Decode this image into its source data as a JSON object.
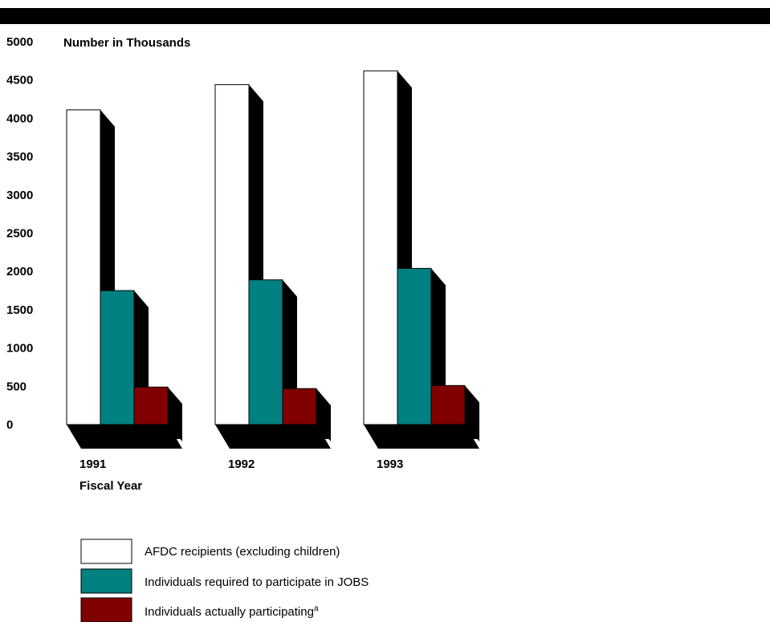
{
  "chart_data": {
    "type": "bar",
    "title": "",
    "ylabel": "Number in Thousands",
    "xlabel": "Fiscal Year",
    "categories": [
      "1991",
      "1992",
      "1993"
    ],
    "series": [
      {
        "name": "AFDC recipients (excluding children)",
        "values": [
          4110,
          4440,
          4620
        ],
        "color": "#ffffff"
      },
      {
        "name": "Individuals required to participate in JOBS",
        "values": [
          1750,
          1890,
          2040
        ],
        "color": "#008080"
      },
      {
        "name": "Individuals actually participating",
        "name_superscript": "a",
        "values": [
          490,
          470,
          510
        ],
        "color": "#800000"
      }
    ],
    "ylim": [
      0,
      5000
    ],
    "yticks": [
      0,
      500,
      1000,
      1500,
      2000,
      2500,
      3000,
      3500,
      4000,
      4500,
      5000
    ],
    "grid": false,
    "legend_position": "bottom",
    "style": "3d-bar"
  }
}
